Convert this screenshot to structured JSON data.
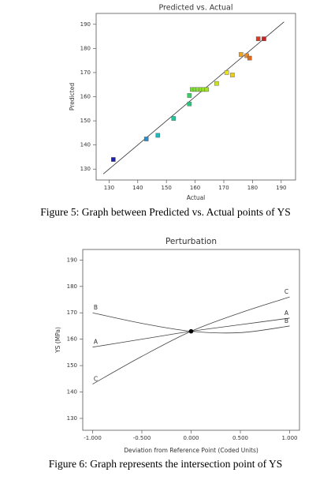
{
  "chart_data": [
    {
      "type": "scatter",
      "title": "Predicted vs. Actual",
      "x_label": "Actual",
      "y_label": "Predicted",
      "caption": "Figure 5: Graph between Predicted vs. Actual points of YS",
      "x": [
        131.5,
        143,
        147,
        152.5,
        158,
        158,
        159,
        160,
        161,
        162,
        163,
        164,
        167.5,
        171,
        173,
        176,
        178,
        179,
        182,
        184
      ],
      "values": [
        134,
        142.5,
        144,
        151,
        157,
        160.5,
        163,
        163,
        163,
        163,
        163,
        163,
        165.5,
        170,
        169,
        177.5,
        177,
        176,
        184,
        184
      ],
      "colors": [
        "#1c22b0",
        "#2a8fc8",
        "#22b8b8",
        "#22c49a",
        "#2cc47a",
        "#3ccc66",
        "#78e030",
        "#80e030",
        "#88e030",
        "#90e028",
        "#98e028",
        "#a0e028",
        "#c8e020",
        "#e8e020",
        "#e8cc20",
        "#f0a420",
        "#f08820",
        "#e06a20",
        "#d83a22",
        "#c82222"
      ],
      "reference_line": {
        "x": [
          128,
          191
        ],
        "y": [
          128,
          191
        ]
      },
      "xlim": [
        125.5,
        195
      ],
      "ylim": [
        125.5,
        194.5
      ],
      "xticks": [
        130,
        140,
        150,
        160,
        170,
        180,
        190
      ],
      "yticks": [
        130,
        140,
        150,
        160,
        170,
        180,
        190
      ]
    },
    {
      "type": "line",
      "title": "Perturbation",
      "x_label": "Deviation from Reference Point (Coded Units)",
      "y_label": "YS (MPa)",
      "caption": "Figure 6: Graph represents the intersection point of YS",
      "x": [
        -1,
        -0.5,
        0,
        0.5,
        1
      ],
      "series": [
        {
          "name": "A",
          "color": "#444",
          "values": [
            157,
            160,
            163,
            165.5,
            168
          ]
        },
        {
          "name": "B",
          "color": "#444",
          "values": [
            170,
            166,
            163,
            162.5,
            165
          ]
        },
        {
          "name": "C",
          "color": "#444",
          "values": [
            143,
            153.5,
            163,
            170,
            176
          ]
        }
      ],
      "reference_point": {
        "x": 0,
        "y": 163
      },
      "xlim": [
        -1.1,
        1.1
      ],
      "ylim": [
        125.5,
        194
      ],
      "xticks": [
        {
          "value": -1,
          "label": "-1.000"
        },
        {
          "value": -0.5,
          "label": "-0.500"
        },
        {
          "value": 0,
          "label": "0.000"
        },
        {
          "value": 0.5,
          "label": "0.500"
        },
        {
          "value": 1,
          "label": "1.000"
        }
      ],
      "yticks": [
        130,
        140,
        150,
        160,
        170,
        180,
        190
      ]
    }
  ]
}
